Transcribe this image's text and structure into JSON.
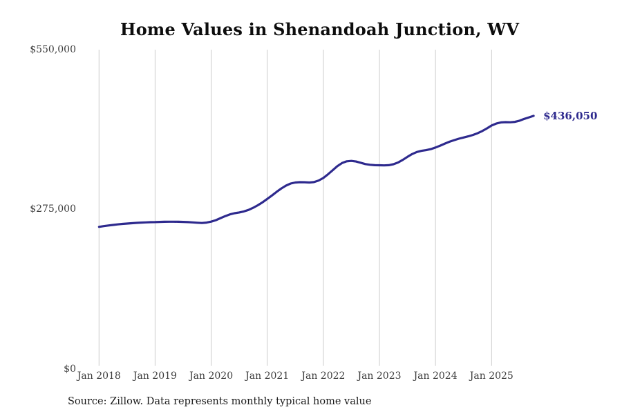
{
  "title": "Home Values in Shenandoah Junction, WV",
  "source_note": "Source: Zillow. Data represents monthly typical home value",
  "end_label": "$436,050",
  "colors": {
    "line": "#2e2a8e",
    "end_label_text": "#2e2a8e",
    "grid": "#cbcbcb",
    "tick_text": "#3c3c3c"
  },
  "chart_data": {
    "type": "line",
    "title": "Home Values in Shenandoah Junction, WV",
    "series_name": "Monthly typical home value",
    "ylabel": "",
    "xlabel": "",
    "ylim": [
      0,
      550000
    ],
    "grid": "vertical-only",
    "legend": "none",
    "y_tick_labels": [
      "$0",
      "$275,000",
      "$550,000"
    ],
    "y_tick_values": [
      0,
      275000,
      550000
    ],
    "x_tick_labels": [
      "Jan 2018",
      "Jan 2019",
      "Jan 2020",
      "Jan 2021",
      "Jan 2022",
      "Jan 2023",
      "Jan 2024",
      "Jan 2025"
    ],
    "latest_value": 436050,
    "latest_value_label": "$436,050",
    "months": [
      "2018-01",
      "2018-02",
      "2018-03",
      "2018-04",
      "2018-05",
      "2018-06",
      "2018-07",
      "2018-08",
      "2018-09",
      "2018-10",
      "2018-11",
      "2018-12",
      "2019-01",
      "2019-02",
      "2019-03",
      "2019-04",
      "2019-05",
      "2019-06",
      "2019-07",
      "2019-08",
      "2019-09",
      "2019-10",
      "2019-11",
      "2019-12",
      "2020-01",
      "2020-02",
      "2020-03",
      "2020-04",
      "2020-05",
      "2020-06",
      "2020-07",
      "2020-08",
      "2020-09",
      "2020-10",
      "2020-11",
      "2020-12",
      "2021-01",
      "2021-02",
      "2021-03",
      "2021-04",
      "2021-05",
      "2021-06",
      "2021-07",
      "2021-08",
      "2021-09",
      "2021-10",
      "2021-11",
      "2021-12",
      "2022-01",
      "2022-02",
      "2022-03",
      "2022-04",
      "2022-05",
      "2022-06",
      "2022-07",
      "2022-08",
      "2022-09",
      "2022-10",
      "2022-11",
      "2022-12",
      "2023-01",
      "2023-02",
      "2023-03",
      "2023-04",
      "2023-05",
      "2023-06",
      "2023-07",
      "2023-08",
      "2023-09",
      "2023-10",
      "2023-11",
      "2023-12",
      "2024-01",
      "2024-02",
      "2024-03",
      "2024-04",
      "2024-05",
      "2024-06",
      "2024-07",
      "2024-08",
      "2024-09",
      "2024-10",
      "2024-11",
      "2024-12",
      "2025-01",
      "2025-02",
      "2025-03",
      "2025-04",
      "2025-05",
      "2025-06",
      "2025-07",
      "2025-08",
      "2025-09",
      "2025-10"
    ],
    "values": [
      245000,
      246200,
      247300,
      248300,
      249200,
      250000,
      250700,
      251300,
      251800,
      252300,
      252700,
      253000,
      253200,
      253500,
      253700,
      253800,
      253800,
      253700,
      253500,
      253200,
      252700,
      252100,
      251600,
      252300,
      254000,
      256500,
      260000,
      263500,
      266500,
      268500,
      269800,
      271500,
      274200,
      277800,
      282200,
      287300,
      293000,
      299000,
      305200,
      311000,
      316000,
      319500,
      321300,
      321900,
      321800,
      321300,
      322000,
      324800,
      329200,
      335500,
      342500,
      349500,
      354800,
      357800,
      358500,
      357500,
      355300,
      353100,
      351800,
      351200,
      351000,
      350800,
      351200,
      352800,
      355800,
      360300,
      365500,
      370300,
      373800,
      375800,
      377000,
      378800,
      381500,
      384800,
      388300,
      391500,
      394300,
      396800,
      398800,
      400800,
      403200,
      406200,
      410000,
      414500,
      419500,
      422800,
      424800,
      425300,
      425000,
      425800,
      427800,
      430800,
      433500,
      436050
    ]
  }
}
